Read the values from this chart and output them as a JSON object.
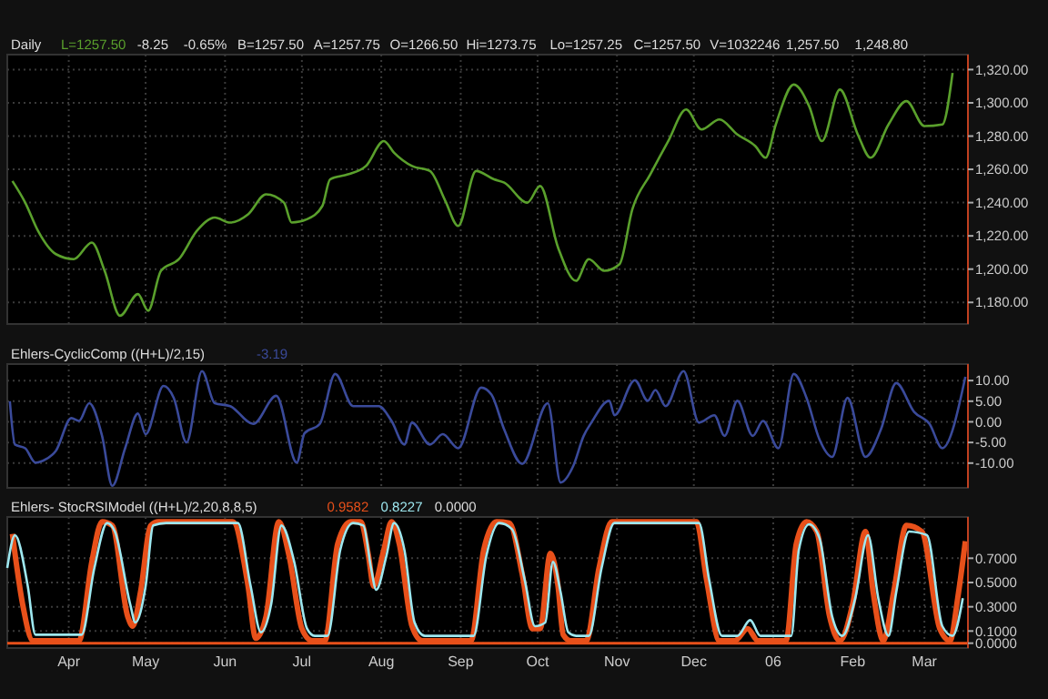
{
  "chart_data": [
    {
      "type": "line",
      "title": "Daily",
      "annotations": [
        "L=1257.50",
        "-8.25",
        "-0.65%",
        "B=1257.50",
        "A=1257.75",
        "O=1266.50",
        "Hi=1273.75",
        "Lo=1257.25",
        "C=1257.50",
        "V=1032246",
        "1,257.50",
        "1,248.80"
      ],
      "xlim": [
        "2005-03-08",
        "2006-03-18"
      ],
      "ylim": [
        1167,
        1329
      ],
      "yticks": [
        {
          "value": 1180,
          "label": "1,180.00"
        },
        {
          "value": 1200,
          "label": "1,200.00"
        },
        {
          "value": 1220,
          "label": "1,220.00"
        },
        {
          "value": 1240,
          "label": "1,240.00"
        },
        {
          "value": 1260,
          "label": "1,260.00"
        },
        {
          "value": 1280,
          "label": "1,280.00"
        },
        {
          "value": 1300,
          "label": "1,300.00"
        },
        {
          "value": 1320,
          "label": "1,320.00"
        }
      ],
      "xticks": [
        {
          "value": "2005-04-01",
          "label": null
        },
        {
          "value": "2005-05-01",
          "label": null
        },
        {
          "value": "2005-06-01",
          "label": null
        },
        {
          "value": "2005-07-01",
          "label": null
        },
        {
          "value": "2005-08-01",
          "label": null
        },
        {
          "value": "2005-09-01",
          "label": null
        },
        {
          "value": "2005-10-01",
          "label": null
        },
        {
          "value": "2005-11-01",
          "label": null
        },
        {
          "value": "2005-12-01",
          "label": null
        },
        {
          "value": "2006-01-01",
          "label": null
        },
        {
          "value": "2006-02-01",
          "label": null
        },
        {
          "value": "2006-03-01",
          "label": null
        }
      ],
      "tick_labels": "y",
      "grid": true,
      "series": [
        {
          "color": "#5aa02c",
          "x": [
            "2005-03-10",
            "2005-03-15",
            "2005-03-20",
            "2005-03-27",
            "2005-04-03",
            "2005-04-10",
            "2005-04-15",
            "2005-04-21",
            "2005-04-28",
            "2005-05-02",
            "2005-05-07",
            "2005-05-14",
            "2005-05-21",
            "2005-05-28",
            "2005-06-03",
            "2005-06-10",
            "2005-06-17",
            "2005-06-24",
            "2005-06-27",
            "2005-07-03",
            "2005-07-09",
            "2005-07-12",
            "2005-07-19",
            "2005-07-26",
            "2005-08-02",
            "2005-08-06",
            "2005-08-13",
            "2005-08-20",
            "2005-08-26",
            "2005-08-31",
            "2005-09-07",
            "2005-09-14",
            "2005-09-18",
            "2005-09-27",
            "2005-10-02",
            "2005-10-09",
            "2005-10-16",
            "2005-10-21",
            "2005-10-27",
            "2005-11-02",
            "2005-11-07",
            "2005-11-14",
            "2005-11-21",
            "2005-11-28",
            "2005-12-04",
            "2005-12-11",
            "2005-12-18",
            "2005-12-25",
            "2005-12-29",
            "2006-01-02",
            "2006-01-09",
            "2006-01-15",
            "2006-01-20",
            "2006-01-27",
            "2006-02-03",
            "2006-02-08",
            "2006-02-15",
            "2006-02-22",
            "2006-03-01",
            "2006-03-08",
            "2006-03-12"
          ],
          "values": [
            1253,
            1240,
            1223,
            1209,
            1206,
            1216,
            1199,
            1172,
            1185,
            1175,
            1199,
            1206,
            1223,
            1231,
            1228,
            1233,
            1245,
            1240,
            1228,
            1230,
            1238,
            1254,
            1257,
            1262,
            1277,
            1270,
            1262,
            1259,
            1241,
            1226,
            1259,
            1254,
            1252,
            1240,
            1250,
            1213,
            1193,
            1206,
            1199,
            1203,
            1236,
            1257,
            1277,
            1296,
            1284,
            1290,
            1281,
            1274,
            1267,
            1287,
            1311,
            1298,
            1277,
            1308,
            1281,
            1267,
            1287,
            1301,
            1286,
            1287,
            1318
          ]
        }
      ]
    },
    {
      "type": "line",
      "title": "Ehlers-CyclicComp ((H+L)/2,15)",
      "annotations": [
        "-3.19"
      ],
      "xlim": [
        "2005-03-08",
        "2006-03-18"
      ],
      "ylim": [
        -16,
        14
      ],
      "yticks": [
        {
          "value": -10,
          "label": "-10.00"
        },
        {
          "value": -5,
          "label": "-5.00"
        },
        {
          "value": 0,
          "label": "0.00"
        },
        {
          "value": 5,
          "label": "5.00"
        },
        {
          "value": 10,
          "label": "10.00"
        }
      ],
      "xticks": [
        {
          "value": "2005-04-01",
          "label": null
        },
        {
          "value": "2005-05-01",
          "label": null
        },
        {
          "value": "2005-06-01",
          "label": null
        },
        {
          "value": "2005-07-01",
          "label": null
        },
        {
          "value": "2005-08-01",
          "label": null
        },
        {
          "value": "2005-09-01",
          "label": null
        },
        {
          "value": "2005-10-01",
          "label": null
        },
        {
          "value": "2005-11-01",
          "label": null
        },
        {
          "value": "2005-12-01",
          "label": null
        },
        {
          "value": "2006-01-01",
          "label": null
        },
        {
          "value": "2006-02-01",
          "label": null
        },
        {
          "value": "2006-03-01",
          "label": null
        }
      ],
      "tick_labels": "y",
      "grid": true,
      "series": [
        {
          "color": "#3a4a9a",
          "x": [
            "2005-03-09",
            "2005-03-11",
            "2005-03-15",
            "2005-03-19",
            "2005-03-23",
            "2005-03-27",
            "2005-04-02",
            "2005-04-05",
            "2005-04-09",
            "2005-04-14",
            "2005-04-18",
            "2005-04-23",
            "2005-04-28",
            "2005-05-01",
            "2005-05-08",
            "2005-05-12",
            "2005-05-17",
            "2005-05-23",
            "2005-05-28",
            "2005-06-03",
            "2005-06-12",
            "2005-06-21",
            "2005-06-29",
            "2005-07-02",
            "2005-07-08",
            "2005-07-14",
            "2005-07-21",
            "2005-07-31",
            "2005-08-05",
            "2005-08-10",
            "2005-08-13",
            "2005-08-20",
            "2005-08-25",
            "2005-08-31",
            "2005-09-09",
            "2005-09-13",
            "2005-09-18",
            "2005-09-25",
            "2005-10-05",
            "2005-10-10",
            "2005-10-15",
            "2005-10-19",
            "2005-10-22",
            "2005-10-29",
            "2005-10-31",
            "2005-11-08",
            "2005-11-13",
            "2005-11-16",
            "2005-11-20",
            "2005-11-27",
            "2005-12-03",
            "2005-12-09",
            "2005-12-13",
            "2005-12-18",
            "2005-12-24",
            "2005-12-28",
            "2006-01-03",
            "2006-01-09",
            "2006-01-14",
            "2006-01-19",
            "2006-01-24",
            "2006-01-30",
            "2006-02-06",
            "2006-02-12",
            "2006-02-18",
            "2006-02-25",
            "2006-03-03",
            "2006-03-08",
            "2006-03-17"
          ],
          "values": [
            5,
            -5.5,
            -6.4,
            -9.9,
            -9.1,
            -7,
            0.9,
            0.2,
            4.5,
            -3.4,
            -15.5,
            -6.4,
            2,
            -3,
            8.7,
            5.8,
            -5,
            12.3,
            4.5,
            3.8,
            -0.5,
            6.3,
            -9.9,
            -2.8,
            -0.5,
            11.6,
            3.8,
            3.8,
            0.2,
            -5.5,
            -0.2,
            -5.5,
            -3,
            -6.4,
            8.3,
            6.6,
            -1.9,
            -10.2,
            4.5,
            -14.7,
            -10.6,
            -3.4,
            -0.2,
            5.1,
            1.6,
            10.1,
            5.1,
            7.7,
            3.8,
            12.3,
            -0.2,
            1.6,
            -3.4,
            5.1,
            -3.4,
            0.2,
            -6.4,
            11.6,
            5.8,
            -4.2,
            -8.5,
            5.8,
            -8.5,
            -1.9,
            9.4,
            2.4,
            -0.5,
            -6.4,
            10.9
          ]
        }
      ]
    },
    {
      "type": "line",
      "title": "Ehlers- StocRSIModel ((H+L)/2,20,8,8,5)",
      "annotations": [
        "0.9582",
        "0.8227",
        "0.0000"
      ],
      "xlim": [
        "2005-03-08",
        "2006-03-18"
      ],
      "ylim": [
        -0.04,
        1.04
      ],
      "yticks": [
        {
          "value": 0,
          "label": "0.0000"
        },
        {
          "value": 0.1,
          "label": "0.1000"
        },
        {
          "value": 0.3,
          "label": "0.3000"
        },
        {
          "value": 0.5,
          "label": "0.5000"
        },
        {
          "value": 0.7,
          "label": "0.7000"
        }
      ],
      "xticks": [
        {
          "value": "2005-04-01",
          "label": "Apr"
        },
        {
          "value": "2005-05-01",
          "label": "May"
        },
        {
          "value": "2005-06-01",
          "label": "Jun"
        },
        {
          "value": "2005-07-01",
          "label": "Jul"
        },
        {
          "value": "2005-08-01",
          "label": "Aug"
        },
        {
          "value": "2005-09-01",
          "label": "Sep"
        },
        {
          "value": "2005-10-01",
          "label": "Oct"
        },
        {
          "value": "2005-11-01",
          "label": "Nov"
        },
        {
          "value": "2005-12-01",
          "label": "Dec"
        },
        {
          "value": "2006-01-01",
          "label": "06"
        },
        {
          "value": "2006-02-01",
          "label": "Feb"
        },
        {
          "value": "2006-03-01",
          "label": "Mar"
        }
      ],
      "grid": true,
      "ref_lines": [
        {
          "axis": "y",
          "value": 0,
          "color": "#e8501a"
        }
      ],
      "series": [
        {
          "color": "#e8501a",
          "x": [
            "2005-03-10",
            "2005-03-14",
            "2005-03-18",
            "2005-04-05",
            "2005-04-10",
            "2005-04-14",
            "2005-04-18",
            "2005-04-24",
            "2005-04-26",
            "2005-04-29",
            "2005-05-03",
            "2005-05-06",
            "2005-06-04",
            "2005-06-10",
            "2005-06-13",
            "2005-06-17",
            "2005-06-22",
            "2005-06-26",
            "2005-07-01",
            "2005-07-05",
            "2005-07-10",
            "2005-07-15",
            "2005-07-20",
            "2005-07-24",
            "2005-07-27",
            "2005-07-29",
            "2005-08-02",
            "2005-08-05",
            "2005-08-08",
            "2005-08-13",
            "2005-08-17",
            "2005-09-05",
            "2005-09-10",
            "2005-09-15",
            "2005-09-20",
            "2005-09-25",
            "2005-09-29",
            "2005-10-02",
            "2005-10-06",
            "2005-10-09",
            "2005-10-11",
            "2005-10-14",
            "2005-10-20",
            "2005-10-25",
            "2005-10-30",
            "2005-12-02",
            "2005-12-06",
            "2005-12-11",
            "2005-12-17",
            "2005-12-22",
            "2005-12-26",
            "2006-01-06",
            "2006-01-10",
            "2006-01-14",
            "2006-01-18",
            "2006-01-23",
            "2006-01-27",
            "2006-02-01",
            "2006-02-06",
            "2006-02-09",
            "2006-02-13",
            "2006-02-17",
            "2006-02-22",
            "2006-02-28",
            "2006-03-07",
            "2006-03-11",
            "2006-03-14",
            "2006-03-17"
          ],
          "values": [
            0.9,
            0.32,
            0.02,
            0.02,
            0.67,
            1,
            0.97,
            0.22,
            0.14,
            0.42,
            0.97,
            1,
            1,
            0.47,
            0.04,
            0.22,
            1,
            0.72,
            0.12,
            0.02,
            0.02,
            0.82,
            1,
            1,
            0.72,
            0.47,
            0.77,
            1,
            0.82,
            0.14,
            0.02,
            0.02,
            0.77,
            1,
            0.99,
            0.57,
            0.12,
            0.12,
            0.74,
            0.47,
            0.07,
            0.02,
            0.02,
            0.62,
            1,
            1,
            0.52,
            0.02,
            0.02,
            0.12,
            0.02,
            0.02,
            0.82,
            1,
            0.92,
            0.22,
            0.02,
            0.32,
            0.92,
            0.42,
            0.02,
            0.42,
            0.97,
            0.92,
            0.12,
            0.02,
            0.37,
            0.84
          ]
        },
        {
          "color": "#9ee8f0",
          "x": [
            "2005-03-08",
            "2005-03-11",
            "2005-03-16",
            "2005-03-19",
            "2005-04-06",
            "2005-04-11",
            "2005-04-16",
            "2005-04-19",
            "2005-04-25",
            "2005-04-27",
            "2005-05-01",
            "2005-05-04",
            "2005-05-09",
            "2005-06-06",
            "2005-06-11",
            "2005-06-15",
            "2005-06-19",
            "2005-06-23",
            "2005-06-28",
            "2005-07-03",
            "2005-07-06",
            "2005-07-11",
            "2005-07-16",
            "2005-07-21",
            "2005-07-25",
            "2005-07-28",
            "2005-07-30",
            "2005-08-03",
            "2005-08-06",
            "2005-08-10",
            "2005-08-14",
            "2005-08-18",
            "2005-09-06",
            "2005-09-11",
            "2005-09-16",
            "2005-09-21",
            "2005-09-26",
            "2005-09-30",
            "2005-10-04",
            "2005-10-07",
            "2005-10-10",
            "2005-10-13",
            "2005-10-16",
            "2005-10-21",
            "2005-10-26",
            "2005-10-31",
            "2005-12-03",
            "2005-12-07",
            "2005-12-12",
            "2005-12-18",
            "2005-12-23",
            "2005-12-27",
            "2006-01-08",
            "2006-01-11",
            "2006-01-15",
            "2006-01-19",
            "2006-01-24",
            "2006-01-28",
            "2006-02-02",
            "2006-02-07",
            "2006-02-11",
            "2006-02-15",
            "2006-02-18",
            "2006-02-23",
            "2006-03-02",
            "2006-03-08",
            "2006-03-12",
            "2006-03-16"
          ],
          "values": [
            0.62,
            0.89,
            0.47,
            0.07,
            0.07,
            0.62,
            0.99,
            0.92,
            0.32,
            0.17,
            0.47,
            0.97,
            0.99,
            0.99,
            0.47,
            0.09,
            0.32,
            0.97,
            0.67,
            0.12,
            0.06,
            0.06,
            0.77,
            0.99,
            0.97,
            0.62,
            0.44,
            0.72,
            0.99,
            0.77,
            0.17,
            0.06,
            0.06,
            0.72,
            0.99,
            0.94,
            0.52,
            0.14,
            0.17,
            0.67,
            0.42,
            0.09,
            0.06,
            0.06,
            0.62,
            0.99,
            0.99,
            0.52,
            0.06,
            0.06,
            0.19,
            0.06,
            0.06,
            0.77,
            0.98,
            0.87,
            0.22,
            0.06,
            0.37,
            0.89,
            0.37,
            0.06,
            0.42,
            0.92,
            0.89,
            0.14,
            0.06,
            0.37
          ]
        }
      ]
    }
  ]
}
